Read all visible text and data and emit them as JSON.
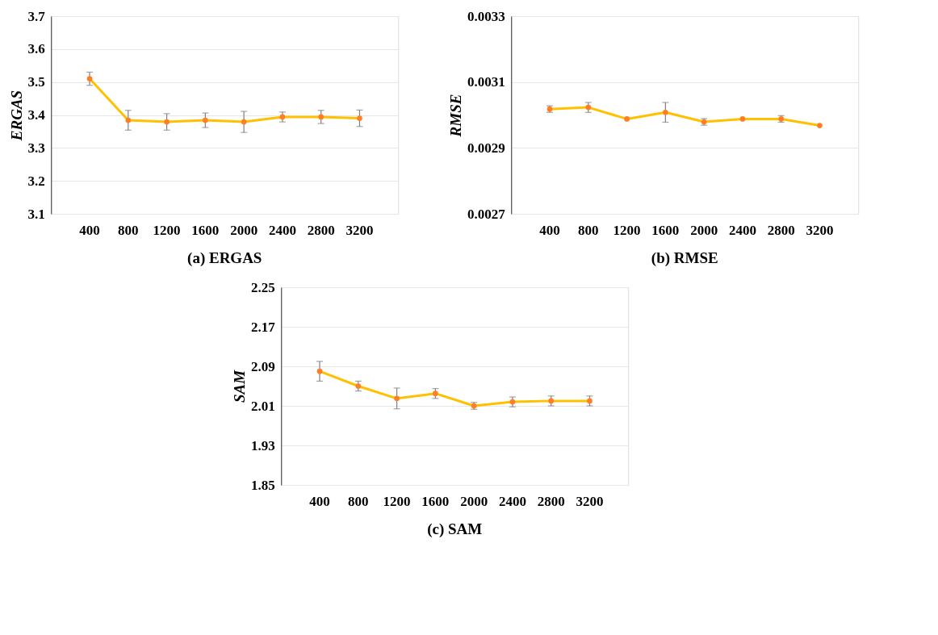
{
  "chart_data": [
    {
      "type": "line",
      "title": "(a) ERGAS",
      "ylabel": "ERGAS",
      "categories": [
        "400",
        "800",
        "1200",
        "1600",
        "2000",
        "2400",
        "2800",
        "3200"
      ],
      "series": [
        {
          "color": "#ffc000",
          "colors": [
            "#ff7f27",
            "#ff7f27",
            "#ff7f27",
            "#ff7f27",
            "#ff7f27",
            "#ff7f27",
            "#ff7f27",
            "#ff7f27"
          ],
          "values": [
            3.51,
            3.384,
            3.379,
            3.384,
            3.379,
            3.394,
            3.394,
            3.39
          ],
          "errors": [
            0.02,
            0.03,
            0.025,
            0.022,
            0.032,
            0.015,
            0.02,
            0.025
          ]
        }
      ],
      "ylim": [
        3.1,
        3.7
      ],
      "yticks": [
        3.1,
        3.2,
        3.3,
        3.4,
        3.5,
        3.6,
        3.7
      ],
      "grid": "y",
      "marker": "circle",
      "line_style": "solid"
    },
    {
      "type": "line",
      "title": "(b) RMSE",
      "ylabel": "RMSE",
      "categories": [
        "400",
        "800",
        "1200",
        "1600",
        "2000",
        "2400",
        "2800",
        "3200"
      ],
      "series": [
        {
          "color": "#ffc000",
          "colors": [
            "#ff7f27",
            "#ff7f27",
            "#ff7f27",
            "#ff7f27",
            "#ff7f27",
            "#ff7f27",
            "#ff7f27",
            "#ff7f27"
          ],
          "values": [
            0.003018,
            0.003023,
            0.002988,
            0.003008,
            0.002979,
            0.002988,
            0.002988,
            0.002968
          ],
          "errors": [
            1e-05,
            1.5e-05,
            null,
            3e-05,
            1e-05,
            null,
            1e-05,
            null
          ]
        }
      ],
      "ylim": [
        0.0027,
        0.0033
      ],
      "yticks": [
        0.0027,
        0.0029,
        0.0031,
        0.0033
      ],
      "grid": "y",
      "marker": "circle",
      "line_style": "solid"
    },
    {
      "type": "line",
      "title": "(c) SAM",
      "ylabel": "SAM",
      "categories": [
        "400",
        "800",
        "1200",
        "1600",
        "2000",
        "2400",
        "2800",
        "3200"
      ],
      "series": [
        {
          "color": "#ffc000",
          "colors": [
            "#ff7f27",
            "#ff7f27",
            "#ff7f27",
            "#ff7f27",
            "#ff7f27",
            "#ff7f27",
            "#ff7f27",
            "#ff7f27"
          ],
          "values": [
            2.08,
            2.05,
            2.025,
            2.035,
            2.01,
            2.018,
            2.02,
            2.02
          ],
          "errors": [
            0.02,
            0.01,
            0.021,
            0.01,
            0.007,
            0.01,
            0.01,
            0.01
          ]
        }
      ],
      "ylim": [
        1.85,
        2.25
      ],
      "yticks": [
        1.85,
        1.93,
        2.01,
        2.09,
        2.17,
        2.25
      ],
      "grid": "y",
      "marker": "circle",
      "line_style": "solid"
    }
  ]
}
